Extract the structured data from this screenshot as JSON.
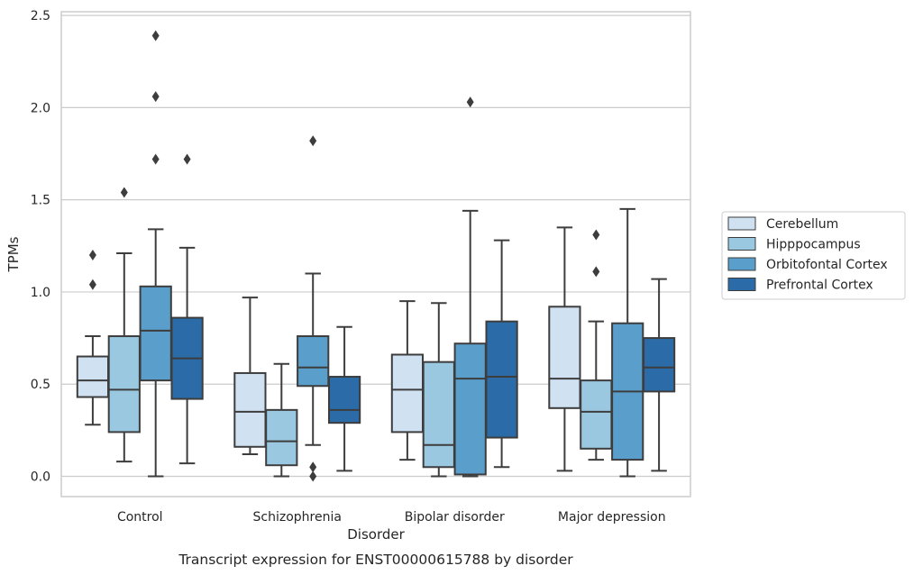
{
  "caption": "Transcript expression for ENST00000615788 by disorder",
  "chart_data": {
    "type": "boxplot",
    "xlabel": "Disorder",
    "ylabel": "TPMs",
    "ylim": [
      -0.11,
      2.52
    ],
    "yticks": [
      0.0,
      0.5,
      1.0,
      1.5,
      2.0,
      2.5
    ],
    "ytick_labels": [
      "0.0",
      "0.5",
      "1.0",
      "1.5",
      "2.0",
      "2.5"
    ],
    "grid": "horizontal",
    "legend_position": "right",
    "categories": [
      "Control",
      "Schizophrenia",
      "Bipolar disorder",
      "Major depression"
    ],
    "series": [
      {
        "name": "Cerebellum",
        "color": "#d0e1f2",
        "boxes": [
          {
            "whislo": 0.28,
            "q1": 0.43,
            "med": 0.52,
            "q3": 0.65,
            "whishi": 0.76,
            "fliers": [
              1.04,
              1.2
            ]
          },
          {
            "whislo": 0.12,
            "q1": 0.16,
            "med": 0.35,
            "q3": 0.56,
            "whishi": 0.97,
            "fliers": []
          },
          {
            "whislo": 0.09,
            "q1": 0.24,
            "med": 0.47,
            "q3": 0.66,
            "whishi": 0.95,
            "fliers": []
          },
          {
            "whislo": 0.03,
            "q1": 0.37,
            "med": 0.53,
            "q3": 0.92,
            "whishi": 1.35,
            "fliers": []
          }
        ]
      },
      {
        "name": "Hipppocampus",
        "color": "#9ac8e0",
        "boxes": [
          {
            "whislo": 0.08,
            "q1": 0.24,
            "med": 0.47,
            "q3": 0.76,
            "whishi": 1.21,
            "fliers": [
              1.54
            ]
          },
          {
            "whislo": 0.0,
            "q1": 0.06,
            "med": 0.19,
            "q3": 0.36,
            "whishi": 0.61,
            "fliers": []
          },
          {
            "whislo": 0.0,
            "q1": 0.05,
            "med": 0.17,
            "q3": 0.62,
            "whishi": 0.94,
            "fliers": []
          },
          {
            "whislo": 0.09,
            "q1": 0.15,
            "med": 0.35,
            "q3": 0.52,
            "whishi": 0.84,
            "fliers": [
              1.11,
              1.31
            ]
          }
        ]
      },
      {
        "name": "Orbitofontal Cortex",
        "color": "#5a9fcb",
        "boxes": [
          {
            "whislo": 0.0,
            "q1": 0.52,
            "med": 0.79,
            "q3": 1.03,
            "whishi": 1.34,
            "fliers": [
              1.72,
              2.06,
              2.39
            ]
          },
          {
            "whislo": 0.17,
            "q1": 0.49,
            "med": 0.59,
            "q3": 0.76,
            "whishi": 1.1,
            "fliers": [
              0.0,
              0.05,
              1.82
            ]
          },
          {
            "whislo": 0.0,
            "q1": 0.01,
            "med": 0.53,
            "q3": 0.72,
            "whishi": 1.44,
            "fliers": [
              2.03
            ]
          },
          {
            "whislo": 0.0,
            "q1": 0.09,
            "med": 0.46,
            "q3": 0.83,
            "whishi": 1.45,
            "fliers": []
          }
        ]
      },
      {
        "name": "Prefrontal Cortex",
        "color": "#2b6ca8",
        "boxes": [
          {
            "whislo": 0.07,
            "q1": 0.42,
            "med": 0.64,
            "q3": 0.86,
            "whishi": 1.24,
            "fliers": [
              1.72
            ]
          },
          {
            "whislo": 0.03,
            "q1": 0.29,
            "med": 0.36,
            "q3": 0.54,
            "whishi": 0.81,
            "fliers": []
          },
          {
            "whislo": 0.05,
            "q1": 0.21,
            "med": 0.54,
            "q3": 0.84,
            "whishi": 1.28,
            "fliers": []
          },
          {
            "whislo": 0.03,
            "q1": 0.46,
            "med": 0.59,
            "q3": 0.75,
            "whishi": 1.07,
            "fliers": []
          }
        ]
      }
    ]
  }
}
